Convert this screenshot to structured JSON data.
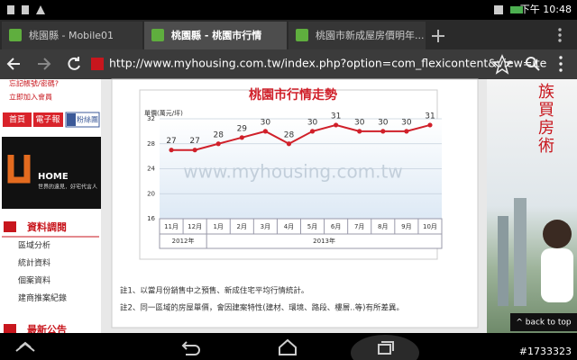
{
  "status_bar": {
    "time": "下午 10:48"
  },
  "tabs": [
    {
      "title": "桃園縣 - Mobile01",
      "active": false
    },
    {
      "title": "桃園縣 - 桃園市行情",
      "active": true
    },
    {
      "title": "桃園市新成屋房價明年..."
    }
  ],
  "address_bar": {
    "url": "http://www.myhousing.com.tw/index.php?option=com_flexicontent&view=ite"
  },
  "sidebar": {
    "links": [
      "忘記帳號/密碼?",
      "立即加入會員"
    ],
    "buttons": [
      "首頁",
      "電子報",
      "粉絲團"
    ],
    "banner": {
      "title": "HOME",
      "slogan": "世界的遠見．好宅代言人"
    },
    "section_title": "資料調閱",
    "menu": [
      "區域分析",
      "統計資料",
      "個案資料",
      "建商推案紀錄"
    ],
    "next_section": "最新公告"
  },
  "chart_data": {
    "type": "line",
    "title": "桃園市行情走勢",
    "y_label": "單價(萬元/坪)",
    "watermark": "www.myhousing.com.tw",
    "categories": [
      "11月",
      "12月",
      "1月",
      "2月",
      "3月",
      "4月",
      "5月",
      "6月",
      "7月",
      "8月",
      "9月",
      "10月"
    ],
    "year_groups": [
      {
        "label": "2012年",
        "span": 2
      },
      {
        "label": "2013年",
        "span": 10
      }
    ],
    "values": [
      27,
      27,
      28,
      29,
      30,
      28,
      30,
      31,
      30,
      30,
      30,
      31
    ],
    "color": "#d0202a",
    "ylim": [
      16,
      32
    ],
    "yticks": [
      16,
      20,
      24,
      28,
      32
    ],
    "grid": true
  },
  "notes": [
    "註1、以當月份銷售中之預售、新成住宅平均行情統計。",
    "註2、同一區域的房屋單價，會因建案特性(建材、環境、路段、樓層..等)有所差異。"
  ],
  "ad": {
    "text": "族買房術"
  },
  "back_to_top": "^ back to top",
  "watermark": "#1733323"
}
